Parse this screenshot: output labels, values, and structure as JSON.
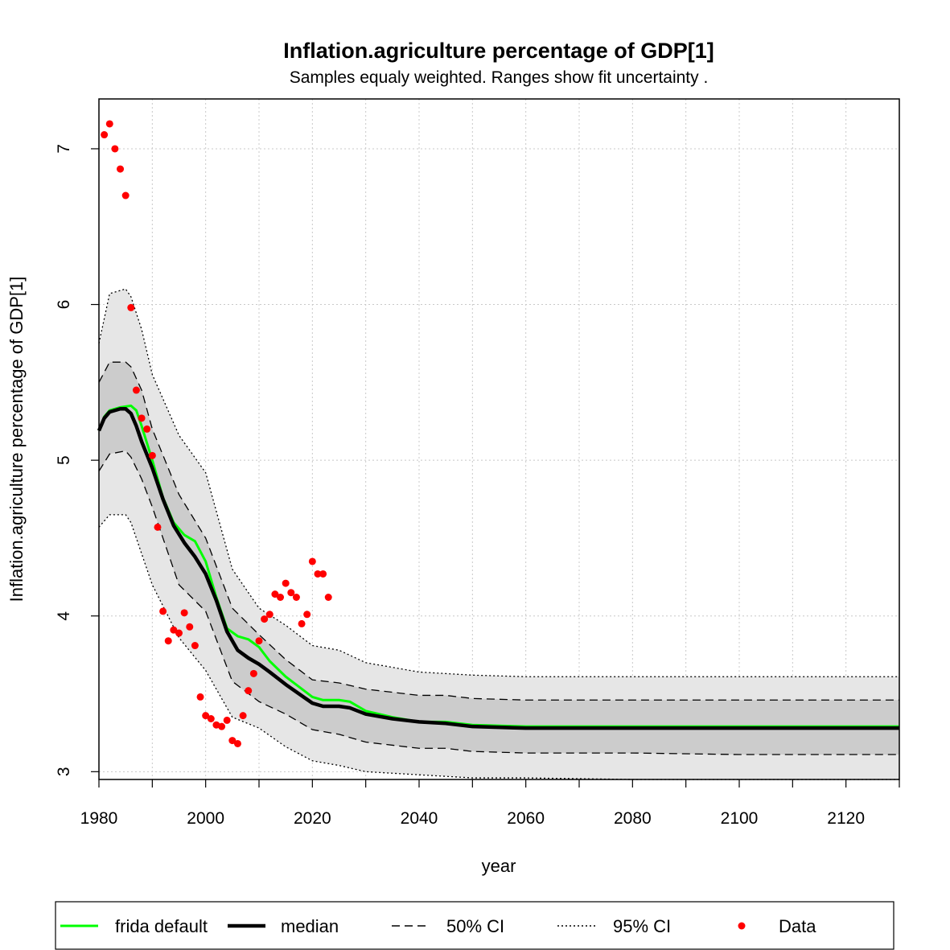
{
  "chart_data": {
    "type": "line",
    "title": "Inflation.agriculture percentage of GDP[1]",
    "subtitle": "Samples equaly weighted. Ranges show  fit uncertainty .",
    "xlabel": "year",
    "ylabel": "Inflation.agriculture percentage of GDP[1]",
    "xlim": [
      1980,
      2130
    ],
    "ylim": [
      2.95,
      7.32
    ],
    "x_ticks": [
      1980,
      2000,
      2020,
      2040,
      2060,
      2080,
      2100,
      2120
    ],
    "y_ticks": [
      3,
      4,
      5,
      6,
      7
    ],
    "grid": true,
    "legend_position": "bottom",
    "legend": [
      {
        "label": "frida default",
        "style": "line",
        "color": "#00ff00"
      },
      {
        "label": "median",
        "style": "thick-line",
        "color": "#000000"
      },
      {
        "label": "50% CI",
        "style": "dashed",
        "color": "#000000"
      },
      {
        "label": "95% CI",
        "style": "dotted",
        "color": "#000000"
      },
      {
        "label": "Data",
        "style": "point",
        "color": "#ff0000"
      }
    ],
    "colors": {
      "frida_default": "#00ff00",
      "median": "#000000",
      "ci50_fill": "#cccccc",
      "ci95_fill": "#e6e6e6",
      "data": "#ff0000",
      "grid": "#c8c8c8"
    },
    "series": [
      {
        "name": "frida default",
        "x": [
          1980,
          1981,
          1982,
          1984,
          1986,
          1987,
          1988,
          1990,
          1992,
          1994,
          1996,
          1998,
          2000,
          2002,
          2004,
          2006,
          2008,
          2010,
          2012,
          2015,
          2020,
          2022,
          2025,
          2027,
          2030,
          2035,
          2040,
          2045,
          2050,
          2060,
          2080,
          2100,
          2130
        ],
        "y": [
          5.19,
          5.28,
          5.32,
          5.34,
          5.35,
          5.32,
          5.22,
          5.0,
          4.76,
          4.6,
          4.52,
          4.48,
          4.35,
          4.12,
          3.92,
          3.87,
          3.85,
          3.8,
          3.71,
          3.61,
          3.48,
          3.46,
          3.46,
          3.45,
          3.39,
          3.35,
          3.32,
          3.32,
          3.3,
          3.29,
          3.29,
          3.29,
          3.29
        ]
      },
      {
        "name": "median",
        "x": [
          1980,
          1981,
          1982,
          1984,
          1985,
          1986,
          1987,
          1988,
          1990,
          1992,
          1994,
          1996,
          1998,
          2000,
          2002,
          2004,
          2006,
          2008,
          2010,
          2012,
          2015,
          2020,
          2022,
          2025,
          2027,
          2030,
          2035,
          2040,
          2045,
          2050,
          2060,
          2080,
          2100,
          2130
        ],
        "y": [
          5.19,
          5.27,
          5.31,
          5.33,
          5.33,
          5.3,
          5.22,
          5.12,
          4.95,
          4.75,
          4.58,
          4.47,
          4.38,
          4.27,
          4.1,
          3.9,
          3.78,
          3.73,
          3.69,
          3.64,
          3.56,
          3.44,
          3.42,
          3.42,
          3.41,
          3.37,
          3.34,
          3.32,
          3.31,
          3.29,
          3.28,
          3.28,
          3.28,
          3.28
        ]
      }
    ],
    "bands": [
      {
        "name": "95% CI",
        "x": [
          1980,
          1982,
          1985,
          1986,
          1988,
          1990,
          1995,
          2000,
          2005,
          2010,
          2015,
          2020,
          2025,
          2030,
          2040,
          2045,
          2050,
          2060,
          2080,
          2100,
          2130
        ],
        "upper": [
          5.75,
          6.07,
          6.1,
          6.05,
          5.84,
          5.55,
          5.16,
          4.92,
          4.3,
          4.05,
          3.94,
          3.81,
          3.78,
          3.7,
          3.64,
          3.63,
          3.62,
          3.61,
          3.61,
          3.61,
          3.61
        ],
        "lower": [
          4.57,
          4.65,
          4.65,
          4.6,
          4.4,
          4.2,
          3.86,
          3.65,
          3.35,
          3.28,
          3.16,
          3.07,
          3.04,
          3.0,
          2.98,
          2.97,
          2.96,
          2.96,
          2.95,
          2.95,
          2.95
        ]
      },
      {
        "name": "50% CI",
        "x": [
          1980,
          1982,
          1985,
          1986,
          1988,
          1990,
          1995,
          2000,
          2005,
          2010,
          2015,
          2020,
          2025,
          2030,
          2040,
          2045,
          2050,
          2060,
          2080,
          2100,
          2130
        ],
        "upper": [
          5.5,
          5.63,
          5.63,
          5.6,
          5.45,
          5.2,
          4.78,
          4.5,
          4.05,
          3.88,
          3.72,
          3.59,
          3.57,
          3.53,
          3.49,
          3.49,
          3.47,
          3.46,
          3.46,
          3.46,
          3.46
        ],
        "lower": [
          4.93,
          5.04,
          5.06,
          5.02,
          4.88,
          4.7,
          4.2,
          4.03,
          3.58,
          3.45,
          3.37,
          3.27,
          3.24,
          3.19,
          3.15,
          3.15,
          3.13,
          3.12,
          3.12,
          3.11,
          3.11
        ]
      }
    ],
    "data_points": {
      "name": "Data",
      "x": [
        1981,
        1982,
        1983,
        1984,
        1985,
        1986,
        1987,
        1988,
        1989,
        1990,
        1991,
        1992,
        1993,
        1994,
        1995,
        1996,
        1997,
        1998,
        1999,
        2000,
        2001,
        2002,
        2003,
        2004,
        2005,
        2006,
        2007,
        2008,
        2009,
        2010,
        2011,
        2012,
        2013,
        2014,
        2015,
        2016,
        2017,
        2018,
        2019,
        2020,
        2021,
        2022,
        2023
      ],
      "y": [
        7.09,
        7.16,
        7.0,
        6.87,
        6.7,
        5.98,
        5.45,
        5.27,
        5.2,
        5.03,
        4.57,
        4.03,
        3.84,
        3.91,
        3.89,
        4.02,
        3.93,
        3.81,
        3.48,
        3.36,
        3.34,
        3.3,
        3.29,
        3.33,
        3.2,
        3.18,
        3.36,
        3.52,
        3.63,
        3.84,
        3.98,
        4.01,
        4.14,
        4.12,
        4.21,
        4.15,
        4.12,
        3.95,
        4.01,
        4.35,
        4.27,
        4.27,
        4.12
      ]
    }
  }
}
